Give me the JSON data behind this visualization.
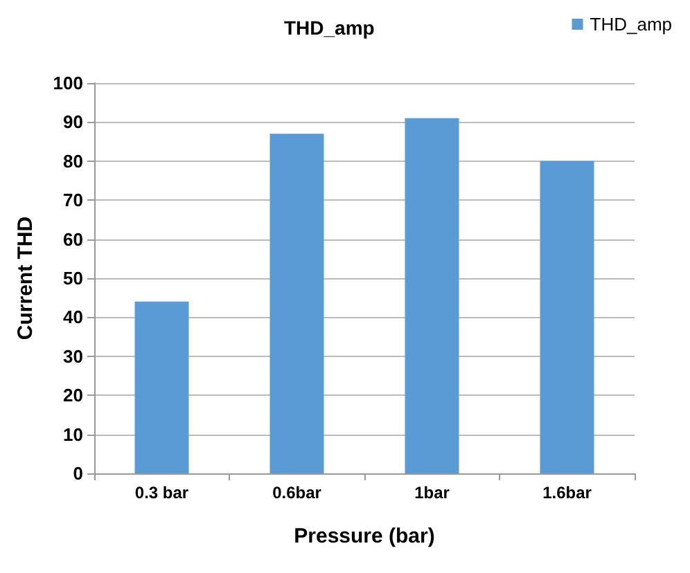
{
  "chart_data": {
    "type": "bar",
    "title": "THD_amp",
    "xlabel": "Pressure (bar)",
    "ylabel": "Current THD",
    "categories": [
      "0.3 bar",
      "0.6bar",
      "1bar",
      "1.6bar"
    ],
    "series": [
      {
        "name": "THD_amp",
        "color": "#5b9bd5",
        "values": [
          44,
          87,
          91,
          80
        ]
      }
    ],
    "ylim": [
      0,
      100
    ],
    "yticks": [
      0,
      10,
      20,
      30,
      40,
      50,
      60,
      70,
      80,
      90,
      100
    ],
    "grid": "y",
    "legend": "top right"
  }
}
